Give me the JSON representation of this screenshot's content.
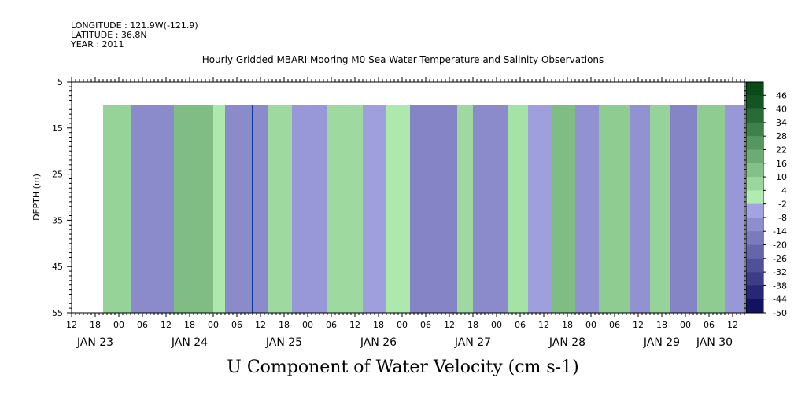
{
  "header": {
    "longitude": "LONGITUDE : 121.9W(-121.9)",
    "latitude": "LATITUDE : 36.8N",
    "year": "YEAR : 2011"
  },
  "chart_data": {
    "type": "heatmap",
    "title": "Hourly Gridded MBARI Mooring M0 Sea Water Temperature and Salinity Observations",
    "variable_label": "U Component of Water Velocity (cm s-1)",
    "ylabel": "DEPTH (m)",
    "ylim": [
      55,
      5
    ],
    "y_ticks": [
      5,
      15,
      25,
      35,
      45,
      55
    ],
    "data_depth_range": [
      10,
      55
    ],
    "x_hour_labels": [
      "12",
      "18",
      "00",
      "06",
      "12",
      "18",
      "00",
      "06",
      "12",
      "18",
      "00",
      "06",
      "12",
      "18",
      "00",
      "06",
      "12",
      "18",
      "00",
      "06",
      "12",
      "18",
      "00",
      "06",
      "12",
      "18",
      "00",
      "06",
      "12",
      "18",
      "00",
      "06"
    ],
    "x_date_labels": [
      "JAN 23",
      "JAN 24",
      "JAN 25",
      "JAN 26",
      "JAN 27",
      "JAN 28",
      "JAN 29",
      "JAN 30"
    ],
    "x_range": [
      "2011-01-23 06:00",
      "2011-01-30 09:00"
    ],
    "data_time_range": [
      "2011-01-23 14:00",
      "2011-01-30 09:00"
    ],
    "missing_column_time": "2011-01-25 04:00",
    "colorbar": {
      "levels": [
        -50,
        -44,
        -38,
        -32,
        -26,
        -20,
        -14,
        -8,
        -2,
        4,
        10,
        16,
        22,
        28,
        34,
        40,
        46
      ],
      "labels": [
        "46",
        "40",
        "34",
        "28",
        "22",
        "16",
        "10",
        "4",
        "-2",
        "-8",
        "-14",
        "-20",
        "-26",
        "-32",
        "-38",
        "-44",
        "-50"
      ],
      "negative_color_dark": "#08085a",
      "negative_color_light": "#b4b4f0",
      "positive_color_light": "#b4f0b4",
      "positive_color_dark": "#084a18"
    },
    "bands": [
      {
        "start": "2011-01-23 14:00",
        "end": "2011-01-23 21:00",
        "u": 8
      },
      {
        "start": "2011-01-23 21:00",
        "end": "2011-01-24 08:00",
        "u": -12
      },
      {
        "start": "2011-01-24 08:00",
        "end": "2011-01-24 18:00",
        "u": 14
      },
      {
        "start": "2011-01-24 18:00",
        "end": "2011-01-24 21:00",
        "u": 2
      },
      {
        "start": "2011-01-24 21:00",
        "end": "2011-01-25 08:00",
        "u": -12
      },
      {
        "start": "2011-01-25 08:00",
        "end": "2011-01-25 14:00",
        "u": 6
      },
      {
        "start": "2011-01-25 14:00",
        "end": "2011-01-25 23:00",
        "u": -8
      },
      {
        "start": "2011-01-25 23:00",
        "end": "2011-01-26 08:00",
        "u": 6
      },
      {
        "start": "2011-01-26 08:00",
        "end": "2011-01-26 14:00",
        "u": -6
      },
      {
        "start": "2011-01-26 14:00",
        "end": "2011-01-26 20:00",
        "u": 2
      },
      {
        "start": "2011-01-26 20:00",
        "end": "2011-01-27 08:00",
        "u": -14
      },
      {
        "start": "2011-01-27 08:00",
        "end": "2011-01-27 12:00",
        "u": 6
      },
      {
        "start": "2011-01-27 12:00",
        "end": "2011-01-27 21:00",
        "u": -12
      },
      {
        "start": "2011-01-27 21:00",
        "end": "2011-01-28 02:00",
        "u": 4
      },
      {
        "start": "2011-01-28 02:00",
        "end": "2011-01-28 08:00",
        "u": -6
      },
      {
        "start": "2011-01-28 08:00",
        "end": "2011-01-28 14:00",
        "u": 14
      },
      {
        "start": "2011-01-28 14:00",
        "end": "2011-01-28 20:00",
        "u": -10
      },
      {
        "start": "2011-01-28 20:00",
        "end": "2011-01-29 04:00",
        "u": 10
      },
      {
        "start": "2011-01-29 04:00",
        "end": "2011-01-29 09:00",
        "u": -10
      },
      {
        "start": "2011-01-29 09:00",
        "end": "2011-01-29 14:00",
        "u": 8
      },
      {
        "start": "2011-01-29 14:00",
        "end": "2011-01-29 21:00",
        "u": -14
      },
      {
        "start": "2011-01-29 21:00",
        "end": "2011-01-30 04:00",
        "u": 10
      },
      {
        "start": "2011-01-30 04:00",
        "end": "2011-01-30 09:00",
        "u": -8
      }
    ]
  }
}
